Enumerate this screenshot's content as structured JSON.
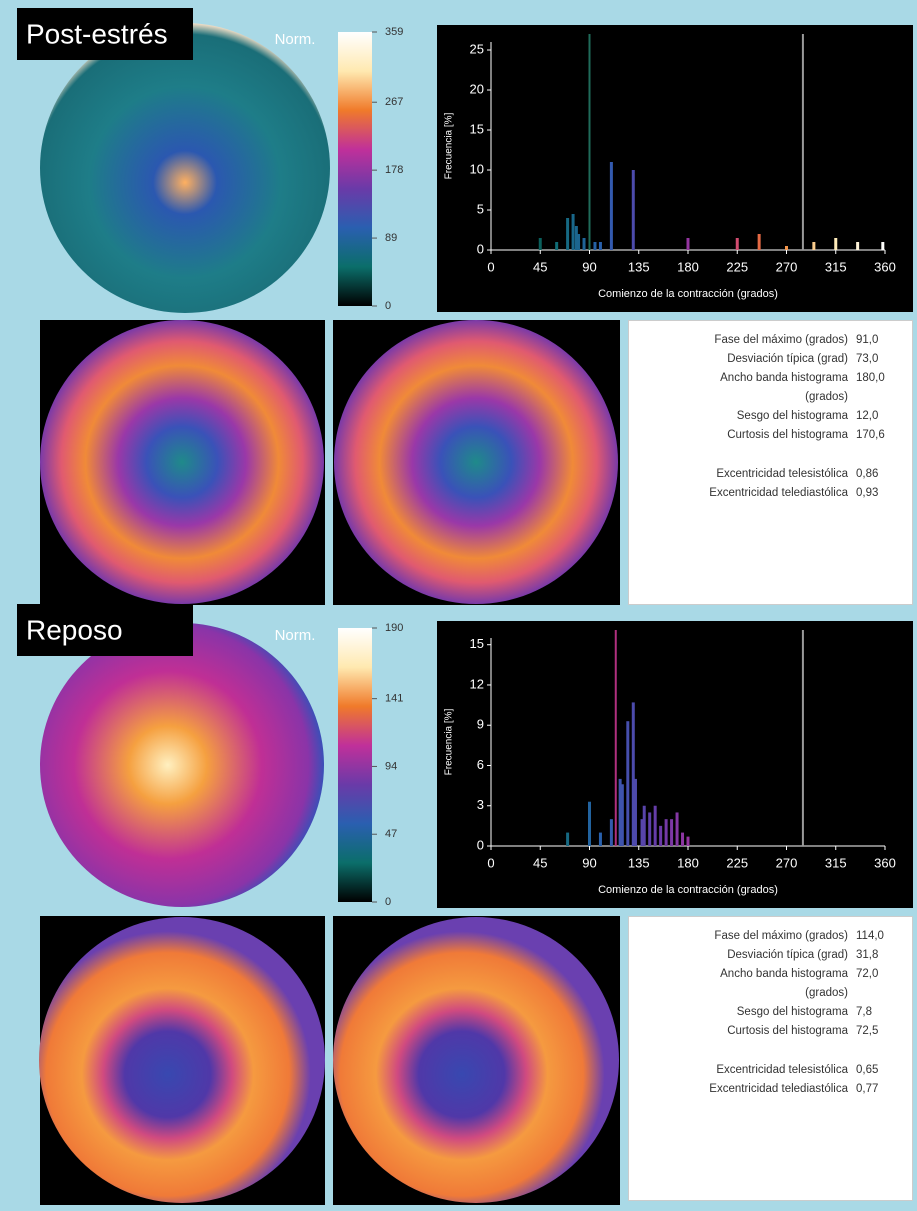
{
  "colormap": [
    "#000000",
    "#0b6e6a",
    "#2a5fb0",
    "#6a3aa8",
    "#c0309a",
    "#f07a2a",
    "#ffe9b0",
    "#ffffff"
  ],
  "panels": [
    {
      "label": "Post-estrés",
      "norm": "Norm.",
      "colorbar": {
        "lim": [
          0,
          359
        ],
        "ticks": [
          0,
          89,
          178,
          267,
          359
        ]
      },
      "histogram": {
        "type": "bar",
        "xlabel": "Comienzo de la contracción (grados)",
        "ylabel": "Frecuencia [%]",
        "xlim": [
          0,
          360
        ],
        "xticks": [
          0,
          45,
          90,
          135,
          180,
          225,
          270,
          315,
          360
        ],
        "ylim": [
          0,
          26
        ],
        "yticks": [
          0,
          5,
          10,
          15,
          20,
          25
        ],
        "x": [
          45,
          60,
          70,
          75,
          78,
          80,
          85,
          95,
          100,
          110,
          130,
          180,
          225,
          245,
          270,
          295,
          315,
          335,
          358
        ],
        "values": [
          1.5,
          1,
          4,
          4.5,
          3,
          2,
          1.5,
          1,
          1,
          11,
          10,
          1.5,
          1.5,
          2,
          0.5,
          1,
          1.5,
          1,
          1
        ],
        "markers": [
          {
            "x": 90,
            "color": "#1f6b5a"
          },
          {
            "x": 285,
            "color": "#9a9a9a"
          }
        ]
      },
      "stats": [
        [
          {
            "label": "Fase del máximo (grados)",
            "value": "91,0"
          },
          {
            "label": "Desviación típica (grad)",
            "value": "73,0"
          },
          {
            "label": "Ancho banda histograma (grados)",
            "value": "180,0"
          },
          {
            "label": "Sesgo del histograma",
            "value": "12,0"
          },
          {
            "label": "Curtosis del histograma",
            "value": "170,6"
          }
        ],
        [
          {
            "label": "Excentricidad telesistólica",
            "value": "0,86"
          },
          {
            "label": "Excentricidad telediastólica",
            "value": "0,93"
          }
        ]
      ]
    },
    {
      "label": "Reposo",
      "norm": "Norm.",
      "colorbar": {
        "lim": [
          0,
          190
        ],
        "ticks": [
          0,
          47,
          94,
          141,
          190
        ]
      },
      "histogram": {
        "type": "bar",
        "xlabel": "Comienzo de la contracción (grados)",
        "ylabel": "Frecuencia [%]",
        "xlim": [
          0,
          360
        ],
        "xticks": [
          0,
          45,
          90,
          135,
          180,
          225,
          270,
          315,
          360
        ],
        "ylim": [
          0,
          15.5
        ],
        "yticks": [
          0,
          3,
          6,
          9,
          12,
          15
        ],
        "x": [
          70,
          90,
          100,
          110,
          118,
          120,
          125,
          130,
          132,
          138,
          140,
          145,
          150,
          155,
          160,
          165,
          170,
          175,
          180
        ],
        "values": [
          1,
          3.3,
          1,
          2,
          5,
          4.6,
          9.3,
          10.7,
          5,
          2,
          3,
          2.5,
          3,
          1.5,
          2,
          2,
          2.5,
          1,
          0.7
        ],
        "markers": [
          {
            "x": 114,
            "color": "#b0307f"
          },
          {
            "x": 285,
            "color": "#9a9a9a"
          }
        ]
      },
      "stats": [
        [
          {
            "label": "Fase del máximo (grados)",
            "value": "114,0"
          },
          {
            "label": "Desviación típica (grad)",
            "value": "31,8"
          },
          {
            "label": "Ancho banda histograma (grados)",
            "value": "72,0"
          },
          {
            "label": "Sesgo del histograma",
            "value": "7,8"
          },
          {
            "label": "Curtosis del histograma",
            "value": "72,5"
          }
        ],
        [
          {
            "label": "Excentricidad telesistólica",
            "value": "0,65"
          },
          {
            "label": "Excentricidad telediastólica",
            "value": "0,77"
          }
        ]
      ]
    }
  ]
}
